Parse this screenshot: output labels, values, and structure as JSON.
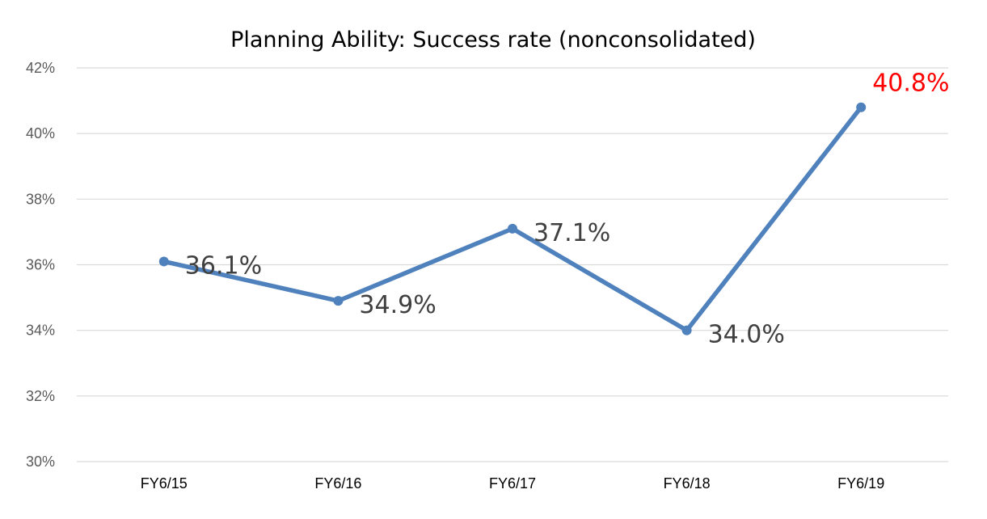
{
  "colors": {
    "series": "#4f81bd",
    "grid": "#d9d9d9",
    "label": "#404040",
    "highlight": "#ff0000"
  },
  "chart_data": {
    "type": "line",
    "title": "Planning Ability: Success rate (nonconsolidated)",
    "xlabel": "",
    "ylabel": "",
    "categories": [
      "FY6/15",
      "FY6/16",
      "FY6/17",
      "FY6/18",
      "FY6/19"
    ],
    "series": [
      {
        "values": [
          36.1,
          34.9,
          37.1,
          34.0,
          40.8
        ],
        "data_labels": [
          "36.1%",
          "34.9%",
          "37.1%",
          "34.0%",
          "40.8%"
        ]
      }
    ],
    "highlighted_point": "FY6/19",
    "ylim": [
      30,
      42
    ],
    "yticks": [
      30,
      32,
      34,
      36,
      38,
      40,
      42
    ],
    "ytick_labels": [
      "30%",
      "32%",
      "34%",
      "36%",
      "38%",
      "40%",
      "42%"
    ],
    "grid": true,
    "legend": "none"
  }
}
